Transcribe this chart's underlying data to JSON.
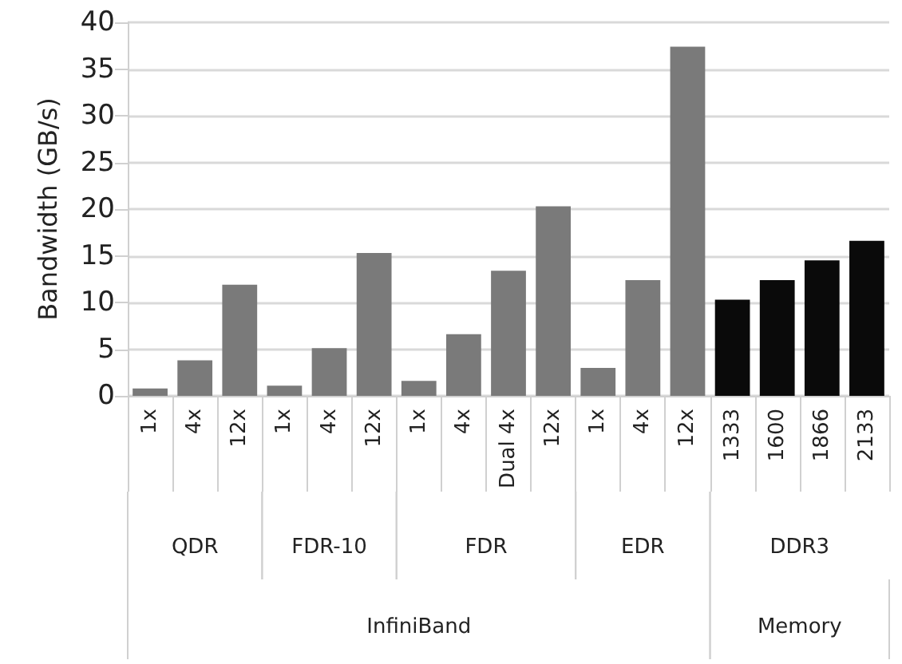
{
  "chart_data": {
    "type": "bar",
    "ylabel": "Bandwidth (GB/s)",
    "categories": [
      "1x",
      "4x",
      "12x",
      "1x",
      "4x",
      "12x",
      "1x",
      "4x",
      "Dual 4x",
      "12x",
      "1x",
      "4x",
      "12x",
      "1333",
      "1600",
      "1866",
      "2133"
    ],
    "values": [
      0.8,
      3.8,
      11.9,
      1.1,
      5.1,
      15.3,
      1.6,
      6.6,
      13.4,
      20.3,
      3.0,
      12.4,
      37.4,
      10.3,
      12.4,
      14.5,
      16.6
    ],
    "colors": [
      "#7a7a7a",
      "#7a7a7a",
      "#7a7a7a",
      "#7a7a7a",
      "#7a7a7a",
      "#7a7a7a",
      "#7a7a7a",
      "#7a7a7a",
      "#7a7a7a",
      "#7a7a7a",
      "#7a7a7a",
      "#7a7a7a",
      "#7a7a7a",
      "#0a0a0a",
      "#0a0a0a",
      "#0a0a0a",
      "#0a0a0a"
    ],
    "annotations": [
      "QDR",
      "FDR-10",
      "FDR",
      "EDR",
      "DDR3",
      "InfiniBand",
      "Memory"
    ],
    "ylim": [
      0,
      40
    ],
    "yticks": [
      0,
      5,
      10,
      15,
      20,
      25,
      30,
      35,
      40
    ],
    "grid": "y"
  }
}
